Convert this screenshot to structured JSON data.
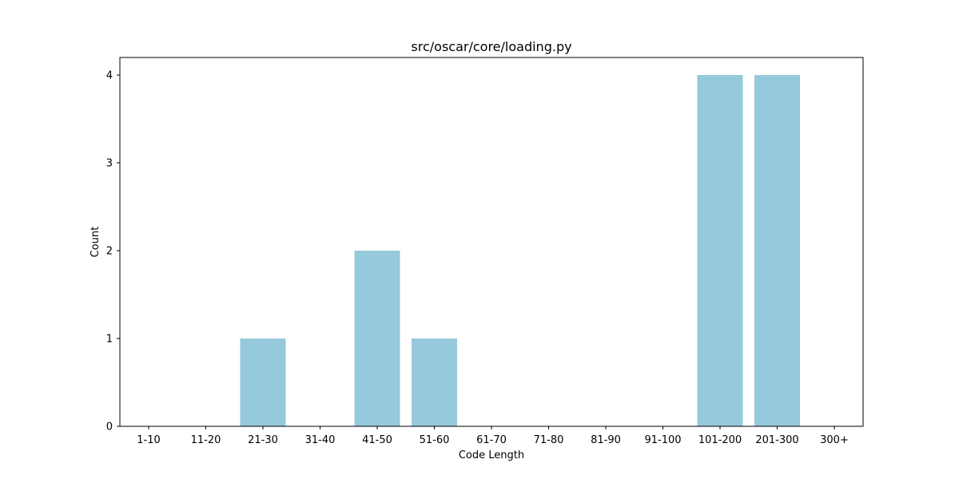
{
  "chart_data": {
    "type": "bar",
    "title": "src/oscar/core/loading.py",
    "xlabel": "Code Length",
    "ylabel": "Count",
    "categories": [
      "1-10",
      "11-20",
      "21-30",
      "31-40",
      "41-50",
      "51-60",
      "61-70",
      "71-80",
      "81-90",
      "91-100",
      "101-200",
      "201-300",
      "300+"
    ],
    "values": [
      0,
      0,
      1,
      0,
      2,
      1,
      0,
      0,
      0,
      0,
      4,
      4,
      0
    ],
    "ylim": [
      0,
      4.2
    ],
    "yticks": [
      0,
      1,
      2,
      3,
      4
    ],
    "grid": false,
    "bar_color": "#96c9dc"
  }
}
